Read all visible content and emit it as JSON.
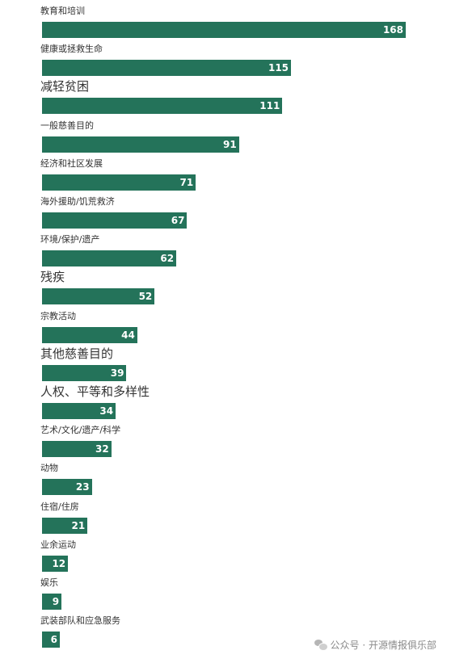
{
  "chart_data": {
    "type": "bar",
    "orientation": "horizontal",
    "categories": [
      "教育和培训",
      "健康或拯救生命",
      "减轻贫困",
      "一般慈善目的",
      "经济和社区发展",
      "海外援助/饥荒救济",
      "环境/保护/遗产",
      "残疾",
      "宗教活动",
      "其他慈善目的",
      "人权、平等和多样性",
      "艺术/文化/遗产/科学",
      "动物",
      "住宿/住房",
      "业余运动",
      "娱乐",
      "武装部队和应急服务"
    ],
    "values": [
      168,
      115,
      111,
      91,
      71,
      67,
      62,
      52,
      44,
      39,
      34,
      32,
      23,
      21,
      12,
      9,
      6
    ],
    "label_sizes": [
      "small",
      "small",
      "large",
      "small",
      "small",
      "small",
      "small",
      "large",
      "small",
      "large",
      "large",
      "small",
      "small",
      "small",
      "small",
      "small",
      "small"
    ],
    "xlim": [
      0,
      168
    ],
    "bar_color": "#24735a",
    "value_label_color": "#ffffff",
    "grid": false,
    "legend": "none"
  },
  "watermark": {
    "text": "公众号 · 开源情报俱乐部",
    "icon": "wechat-icon"
  }
}
